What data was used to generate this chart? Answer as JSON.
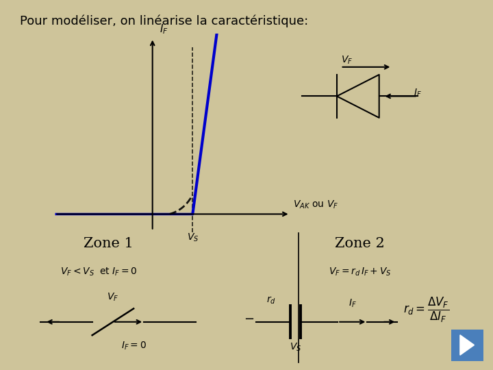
{
  "bg_color": "#cec49a",
  "title": "Pour modéliser, on linéarise la caractéristique:",
  "title_fontsize": 13,
  "curve_color_blue": "#0000cc",
  "zone1_label": "Zone 1",
  "zone2_label": "Zone 2",
  "zone1_sub": "$V_F < V_S$  et $I_F =0$",
  "zone2_sub": "$V_F = r_d\\, I_F+ V_S$",
  "xaxis_label": "$V_{AK}$ ou $V_F$",
  "yaxis_label": "$I_F$",
  "vs_label": "$V_S$",
  "nav_color": "#4a7fbb"
}
